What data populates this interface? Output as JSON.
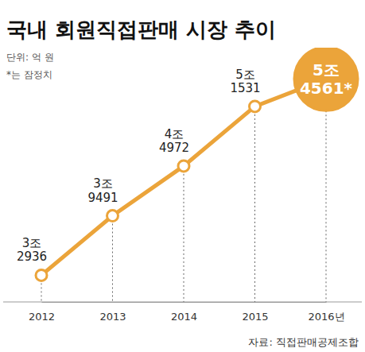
{
  "chart_data": {
    "type": "line",
    "title": "국내 회원직접판매 시장 추이",
    "subtitle": "단위: 억 원",
    "note": "*는 잠정치",
    "source": "자료: 직접판매공제조합",
    "categories": [
      "2012",
      "2013",
      "2014",
      "2015",
      "2016년"
    ],
    "values": [
      32936,
      39491,
      44972,
      51531,
      54561
    ],
    "value_labels": [
      "3조\n2936",
      "3조\n9491",
      "4조\n4972",
      "5조\n1531",
      "5조\n4561*"
    ],
    "color": "#eba43a",
    "marker": "circle",
    "ylim": [
      30000,
      58000
    ],
    "grid": false,
    "data_labels": true,
    "tick_labels": "x"
  }
}
